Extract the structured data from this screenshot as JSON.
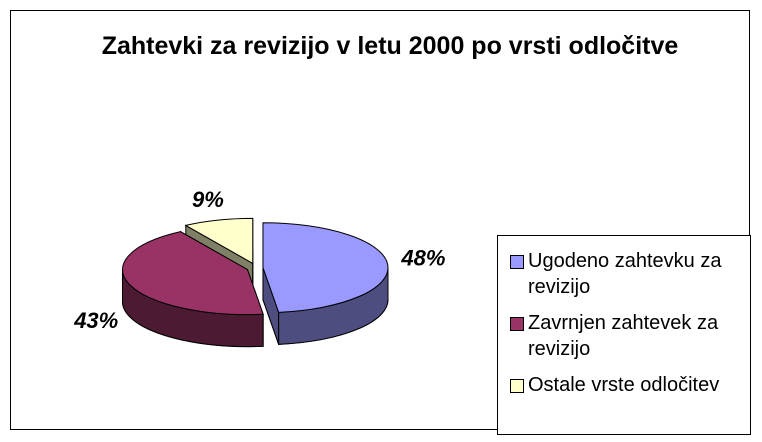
{
  "chart_data": {
    "type": "pie",
    "title": "Zahtevki za revizijo v letu 2000 po vrsti odločitve",
    "categories": [
      "Ugodeno zahtevku za revizijo",
      "Zavrnjen zahtevek za revizijo",
      "Ostale vrste odločitev"
    ],
    "values": [
      48,
      43,
      9
    ],
    "value_labels": [
      "48%",
      "43%",
      "9%"
    ],
    "colors": [
      "#9999ff",
      "#993366",
      "#ffffcc"
    ],
    "legend": "right"
  }
}
